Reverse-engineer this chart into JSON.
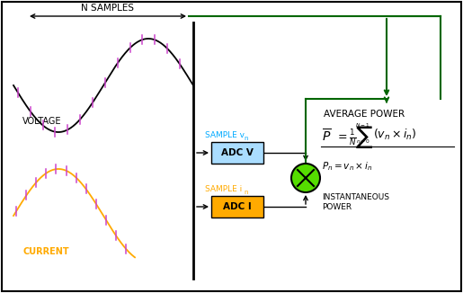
{
  "background_color": "#ffffff",
  "border_color": "#000000",
  "voltage_color": "#000000",
  "voltage_tick_color": "#cc44cc",
  "current_color": "#ffaa00",
  "current_tick_color": "#cc44cc",
  "adc_v_color": "#aaddff",
  "adc_i_color": "#ffaa00",
  "adc_v_text": "ADC V",
  "adc_i_text": "ADC I",
  "sample_vn_color": "#00aaff",
  "sample_in_color": "#ffaa00",
  "multiply_color": "#55dd00",
  "green_color": "#006600",
  "avg_power_label": "AVERAGE POWER",
  "inst_power_label": "INSTANTANEOUS\nPOWER",
  "voltage_label": "VOLTAGE",
  "current_label": "CURRENT",
  "n_samples_label": "N SAMPLES"
}
